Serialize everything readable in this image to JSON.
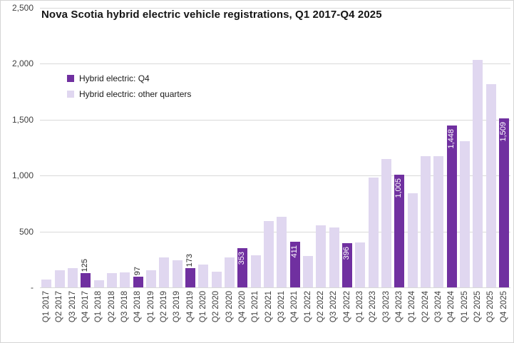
{
  "chart_data": {
    "type": "bar",
    "title": "Nova Scotia hybrid electric vehicle registrations, Q1 2017-Q4 2025",
    "xlabel": "",
    "ylabel": "",
    "ylim": [
      0,
      2500
    ],
    "ytick_values": [
      0,
      500,
      1000,
      1500,
      2000,
      2500
    ],
    "ytick_labels": [
      "-",
      "500",
      "1,000",
      "1,500",
      "2,000",
      "2,500"
    ],
    "grid": true,
    "legend_position": "top-left-inside",
    "categories": [
      "Q1 2017",
      "Q2 2017",
      "Q3 2017",
      "Q4 2017",
      "Q1 2018",
      "Q2 2018",
      "Q3 2018",
      "Q4 2018",
      "Q1 2019",
      "Q2 2019",
      "Q3 2019",
      "Q4 2019",
      "Q1 2020",
      "Q2 2020",
      "Q3 2020",
      "Q4 2020",
      "Q1 2021",
      "Q2 2021",
      "Q3 2021",
      "Q4 2021",
      "Q1 2022",
      "Q2 2022",
      "Q3 2022",
      "Q4 2022",
      "Q1 2023",
      "Q2 2023",
      "Q3 2023",
      "Q4 2023",
      "Q1 2024",
      "Q2 2024",
      "Q3 2024",
      "Q4 2024",
      "Q1 2025",
      "Q2 2025",
      "Q3 2025",
      "Q4 2025"
    ],
    "series": [
      {
        "name": "Hybrid electric: Q4",
        "color": "#7030A0",
        "values": [
          null,
          null,
          null,
          125,
          null,
          null,
          null,
          97,
          null,
          null,
          null,
          173,
          null,
          null,
          null,
          353,
          null,
          null,
          null,
          411,
          null,
          null,
          null,
          396,
          null,
          null,
          null,
          1005,
          null,
          null,
          null,
          1448,
          null,
          null,
          null,
          1509
        ]
      },
      {
        "name": "Hybrid electric: other quarters",
        "color": "#E0D7F0",
        "values": [
          70,
          155,
          170,
          null,
          65,
          125,
          135,
          null,
          150,
          270,
          245,
          null,
          205,
          140,
          270,
          null,
          290,
          590,
          630,
          null,
          280,
          555,
          535,
          null,
          400,
          985,
          1150,
          null,
          845,
          1175,
          1175,
          null,
          1310,
          2035,
          1815,
          null
        ]
      }
    ],
    "data_labels": [
      {
        "category": "Q4 2017",
        "text": "125",
        "placement": "outside"
      },
      {
        "category": "Q4 2018",
        "text": "97",
        "placement": "outside"
      },
      {
        "category": "Q4 2019",
        "text": "173",
        "placement": "outside"
      },
      {
        "category": "Q4 2020",
        "text": "353",
        "placement": "inside"
      },
      {
        "category": "Q4 2021",
        "text": "411",
        "placement": "inside"
      },
      {
        "category": "Q4 2022",
        "text": "396",
        "placement": "inside"
      },
      {
        "category": "Q4 2023",
        "text": "1,005",
        "placement": "inside"
      },
      {
        "category": "Q4 2024",
        "text": "1,448",
        "placement": "inside"
      },
      {
        "category": "Q4 2025",
        "text": "1,509",
        "placement": "inside"
      }
    ],
    "colors": {
      "gridline": "#D9D9D9",
      "axis_text": "#3F3F3F",
      "title_text": "#151515",
      "label_inside": "#FFFFFF",
      "label_outside": "#262626",
      "chart_border": "#D5D5D5",
      "background": "#FFFFFF"
    }
  }
}
